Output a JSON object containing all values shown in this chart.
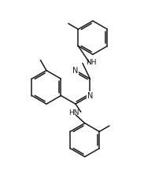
{
  "background_color": "#ffffff",
  "line_color": "#1a1a1a",
  "line_width": 1.1,
  "figsize": [
    1.83,
    2.34
  ],
  "dpi": 100,
  "xlim": [
    0,
    9
  ],
  "ylim": [
    0,
    11
  ]
}
